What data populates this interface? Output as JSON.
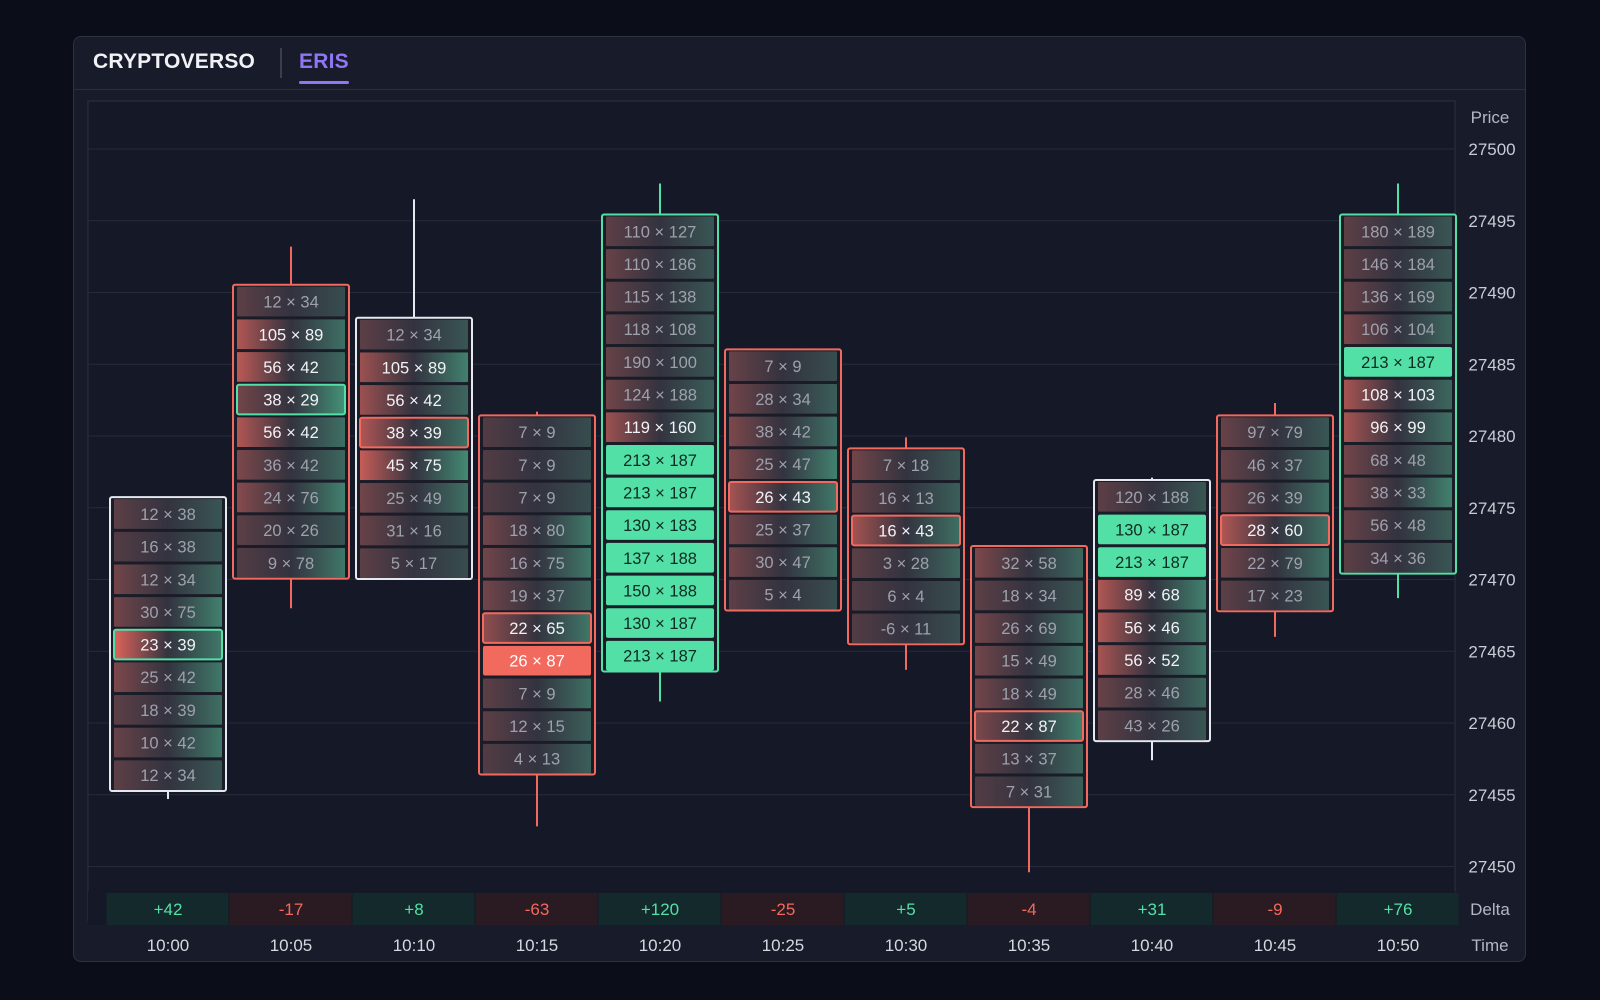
{
  "tabs": [
    {
      "label": "CRYPTOVERSO",
      "active": false
    },
    {
      "label": "ERIS",
      "active": true
    }
  ],
  "axis_labels": {
    "price": "Price",
    "delta": "Delta",
    "time": "Time"
  },
  "colors": {
    "background": "#0b0d18",
    "panel": "#181b29",
    "buy": "#52e0a6",
    "sell": "#f2695e",
    "neutral_cell": "#33333f",
    "active_tab": "#8f76f5"
  },
  "chart_data": {
    "type": "footprint",
    "y_axis": {
      "label": "Price",
      "ticks": [
        27500,
        27495,
        27490,
        27485,
        27480,
        27475,
        27470,
        27465,
        27460,
        27455,
        27450
      ],
      "range": [
        27449,
        27501.5
      ]
    },
    "x_axis": {
      "label": "Time",
      "categories": [
        "10:00",
        "10:05",
        "10:10",
        "10:15",
        "10:20",
        "10:25",
        "10:30",
        "10:35",
        "10:40",
        "10:45",
        "10:50"
      ]
    },
    "candles": [
      {
        "time": "10:00",
        "delta": "+42",
        "direction": "up",
        "high": 27474.8,
        "low": 27454.7,
        "top_level": 27474.6,
        "poc_index": 4,
        "cells": [
          "12 × 38",
          "16 × 38",
          "12 × 34",
          "30 × 75",
          "23 × 39",
          "25 × 42",
          "18 × 39",
          "10 × 42",
          "12 × 34"
        ],
        "bid_intensity": [
          0.2,
          0.15,
          0.3,
          0.3,
          0.85,
          0.35,
          0.2,
          0.25,
          0.2
        ],
        "ask_intensity": [
          0.2,
          0.2,
          0.3,
          0.45,
          0.4,
          0.4,
          0.35,
          0.4,
          0.2
        ],
        "highlight": [
          0,
          0,
          0,
          0,
          2,
          0,
          0,
          0,
          0
        ]
      },
      {
        "time": "10:05",
        "delta": "-17",
        "direction": "down",
        "high": 27493.2,
        "low": 27468.0,
        "top_level": 27489.4,
        "poc_index": 3,
        "cells": [
          "12 × 34",
          "105 × 89",
          "56 × 42",
          "38 × 29",
          "56 × 42",
          "36 × 42",
          "24 × 76",
          "20 × 26",
          "9 × 78"
        ],
        "bid_intensity": [
          0.2,
          0.6,
          0.65,
          0.3,
          0.6,
          0.35,
          0.4,
          0.2,
          0.15
        ],
        "ask_intensity": [
          0.15,
          0.35,
          0.3,
          0.55,
          0.35,
          0.3,
          0.45,
          0.2,
          0.4
        ],
        "highlight": [
          0,
          0,
          0,
          2,
          0,
          0,
          0,
          0,
          0
        ]
      },
      {
        "time": "10:10",
        "delta": "+8",
        "direction": "up",
        "high": 27496.5,
        "low": 27473.6,
        "top_level": 27487.1,
        "poc_index": 3,
        "cells": [
          "12 × 34",
          "105 × 89",
          "56 × 42",
          "38 × 39",
          "45 × 75",
          "25 × 49",
          "31 × 16",
          "5 × 17"
        ],
        "bid_intensity": [
          0.2,
          0.5,
          0.5,
          0.6,
          0.7,
          0.3,
          0.25,
          0.2
        ],
        "ask_intensity": [
          0.2,
          0.45,
          0.3,
          0.35,
          0.5,
          0.35,
          0.15,
          0.15
        ],
        "highlight": [
          0,
          0,
          0,
          1,
          0,
          0,
          0,
          0
        ]
      },
      {
        "time": "10:15",
        "delta": "-63",
        "direction": "down",
        "high": 27481.7,
        "low": 27452.8,
        "top_level": 27480.3,
        "poc_index": 7,
        "cells": [
          "7 × 9",
          "7 × 9",
          "7 × 9",
          "18 × 80",
          "16 × 75",
          "19 × 37",
          "22 × 65",
          "26 × 87",
          "7 × 9",
          "12 × 15",
          "4 × 13"
        ],
        "bid_intensity": [
          0.15,
          0.15,
          0.15,
          0.3,
          0.3,
          0.3,
          0.45,
          1.0,
          0.2,
          0.2,
          0.15
        ],
        "ask_intensity": [
          0.15,
          0.15,
          0.15,
          0.4,
          0.4,
          0.3,
          0.4,
          0.45,
          0.35,
          0.25,
          0.25
        ],
        "highlight": [
          0,
          0,
          0,
          0,
          0,
          0,
          1,
          0,
          0,
          0,
          0
        ]
      },
      {
        "time": "10:20",
        "delta": "+120",
        "direction": "up",
        "high": 27497.6,
        "low": 27461.5,
        "top_level": 27494.3,
        "poc_index": -1,
        "cells": [
          "110 × 127",
          "110 × 186",
          "115 × 138",
          "118 × 108",
          "190 × 100",
          "124 × 188",
          "119 × 160",
          "213 × 187",
          "213 × 187",
          "130 × 183",
          "137 × 188",
          "150 × 188",
          "130 × 187",
          "213 × 187"
        ],
        "bid_intensity": [
          0.2,
          0.25,
          0.2,
          0.2,
          0.25,
          0.3,
          0.5,
          0,
          0,
          0,
          0,
          0,
          0,
          0
        ],
        "ask_intensity": [
          0.2,
          0.2,
          0.2,
          0.2,
          0.2,
          0.25,
          0.3,
          1,
          1,
          1,
          1,
          1,
          1,
          1
        ],
        "highlight": [
          0,
          0,
          0,
          0,
          0,
          0,
          0,
          0,
          0,
          0,
          0,
          0,
          0,
          0
        ]
      },
      {
        "time": "10:25",
        "delta": "-25",
        "direction": "down",
        "high": 27485.9,
        "low": 27468.4,
        "top_level": 27484.9,
        "poc_index": 4,
        "cells": [
          "7 × 9",
          "28 × 34",
          "38 × 42",
          "25 × 47",
          "26 × 43",
          "25 × 37",
          "30 × 47",
          "5 × 4"
        ],
        "bid_intensity": [
          0.25,
          0.3,
          0.35,
          0.35,
          0.55,
          0.3,
          0.3,
          0.2
        ],
        "ask_intensity": [
          0.15,
          0.25,
          0.35,
          0.45,
          0.4,
          0.3,
          0.35,
          0.15
        ],
        "highlight": [
          0,
          0,
          0,
          0,
          1,
          0,
          0,
          0
        ]
      },
      {
        "time": "10:30",
        "delta": "+5",
        "direction": "down",
        "high": 27479.9,
        "low": 27463.7,
        "top_level": 27478.0,
        "poc_index": 2,
        "cells": [
          "7 × 18",
          "16 × 13",
          "16 × 43",
          "3 × 28",
          "6 × 4",
          "-6 × 11"
        ],
        "bid_intensity": [
          0.3,
          0.25,
          0.55,
          0.2,
          0.15,
          0.15
        ],
        "ask_intensity": [
          0.2,
          0.25,
          0.35,
          0.3,
          0.15,
          0.15
        ],
        "highlight": [
          0,
          0,
          1,
          0,
          0,
          0
        ]
      },
      {
        "time": "10:35",
        "delta": "-4",
        "direction": "down",
        "high": 27471.5,
        "low": 27449.6,
        "top_level": 27471.2,
        "poc_index": 5,
        "cells": [
          "32 × 58",
          "18 × 34",
          "26 × 69",
          "15 × 49",
          "18 × 49",
          "22 × 87",
          "13 × 37",
          "7 × 31"
        ],
        "bid_intensity": [
          0.35,
          0.2,
          0.3,
          0.3,
          0.3,
          0.35,
          0.2,
          0.15
        ],
        "ask_intensity": [
          0.3,
          0.2,
          0.35,
          0.35,
          0.35,
          0.45,
          0.3,
          0.25
        ],
        "highlight": [
          0,
          0,
          0,
          0,
          0,
          1,
          0,
          0
        ]
      },
      {
        "time": "10:40",
        "delta": "+31",
        "direction": "up",
        "high": 27477.1,
        "low": 27457.4,
        "top_level": 27475.8,
        "poc_index": -1,
        "cells": [
          "120 × 188",
          "130 × 187",
          "213 × 187",
          "89 × 68",
          "56 × 46",
          "56 × 52",
          "28 × 46",
          "43 × 26"
        ],
        "bid_intensity": [
          0.2,
          0,
          0,
          0.6,
          0.6,
          0.55,
          0.25,
          0.2
        ],
        "ask_intensity": [
          0.2,
          1,
          1,
          0.45,
          0.4,
          0.4,
          0.3,
          0.2
        ],
        "highlight": [
          0,
          0,
          0,
          0,
          0,
          0,
          0,
          0
        ]
      },
      {
        "time": "10:45",
        "delta": "-9",
        "direction": "down",
        "high": 27482.3,
        "low": 27466.0,
        "top_level": 27480.3,
        "poc_index": 3,
        "cells": [
          "97 × 79",
          "46 × 37",
          "26 × 39",
          "28 × 60",
          "22 × 79",
          "17 × 23"
        ],
        "bid_intensity": [
          0.25,
          0.25,
          0.3,
          0.6,
          0.3,
          0.2
        ],
        "ask_intensity": [
          0.2,
          0.3,
          0.35,
          0.35,
          0.35,
          0.2
        ],
        "highlight": [
          0,
          0,
          0,
          1,
          0,
          0
        ]
      },
      {
        "time": "10:50",
        "delta": "+76",
        "direction": "up",
        "high": 27497.6,
        "low": 27468.7,
        "top_level": 27494.3,
        "poc_index": -1,
        "cells": [
          "180 × 189",
          "146 × 184",
          "136 × 169",
          "106 × 104",
          "213 × 187",
          "108 × 103",
          "96 × 99",
          "68 × 48",
          "38 × 33",
          "56 × 48",
          "34 × 36"
        ],
        "bid_intensity": [
          0.2,
          0.2,
          0.25,
          0.35,
          0,
          0.55,
          0.55,
          0.3,
          0.3,
          0.25,
          0.2
        ],
        "ask_intensity": [
          0.2,
          0.2,
          0.25,
          0.3,
          1,
          0.3,
          0.35,
          0.3,
          0.45,
          0.25,
          0.2
        ],
        "highlight": [
          0,
          0,
          0,
          0,
          0,
          0,
          0,
          0,
          0,
          0,
          0
        ]
      }
    ]
  }
}
